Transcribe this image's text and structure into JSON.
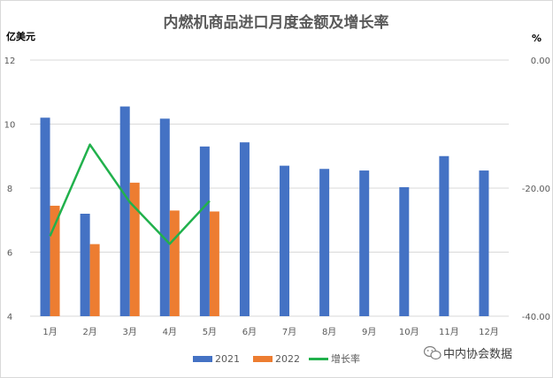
{
  "chart_data": {
    "type": "bar",
    "title": "内燃机商品进口月度金额及增长率",
    "ylabel": "亿美元",
    "y2label": "%",
    "ylim": [
      4,
      12
    ],
    "yticks": [
      "4",
      "6",
      "8",
      "10",
      "12"
    ],
    "y2lim": [
      -40,
      0
    ],
    "y2ticks": [
      "-40.00",
      "-20.00",
      "0.00"
    ],
    "categories": [
      "1月",
      "2月",
      "3月",
      "4月",
      "5月",
      "6月",
      "7月",
      "8月",
      "9月",
      "10月",
      "11月",
      "12月"
    ],
    "series": [
      {
        "name": "2021",
        "type": "bar",
        "axis": "left",
        "color": "#4472c4",
        "values": [
          10.2,
          7.2,
          10.55,
          10.17,
          9.3,
          9.43,
          8.7,
          8.6,
          8.55,
          8.03,
          9.0,
          8.55
        ]
      },
      {
        "name": "2022",
        "type": "bar",
        "axis": "left",
        "color": "#ed7d31",
        "values": [
          7.45,
          6.25,
          8.17,
          7.3,
          7.27,
          null,
          null,
          null,
          null,
          null,
          null,
          null
        ]
      },
      {
        "name": "增长率",
        "type": "line",
        "axis": "right",
        "color": "#21b14c",
        "values": [
          -27.5,
          -13.2,
          -22.2,
          -28.7,
          -22.0,
          null,
          null,
          null,
          null,
          null,
          null,
          null
        ]
      }
    ],
    "grid": true,
    "legend_position": "bottom"
  },
  "watermark": {
    "text": "中内协会数据",
    "icon": "wechat-icon"
  }
}
